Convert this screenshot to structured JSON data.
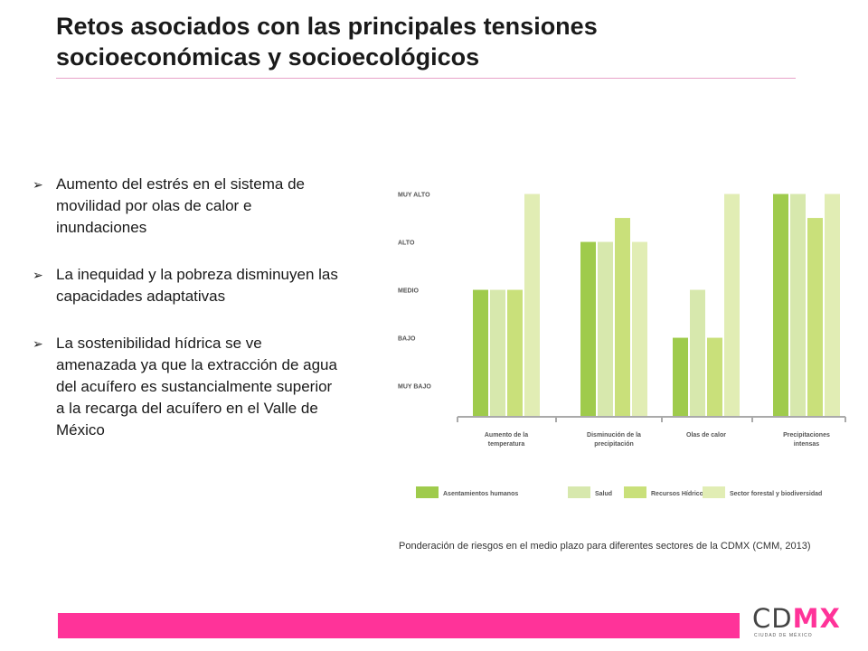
{
  "slide": {
    "title": "Retos asociados con las principales tensiones socioeconómicas y socioecológicos",
    "bullets": [
      "Aumento del estrés en el sistema de movilidad por olas de calor e inundaciones",
      "La inequidad y la pobreza disminuyen las capacidades adaptativas",
      "La sostenibilidad hídrica se ve amenazada ya que la extracción de agua del acuífero es sustancialmente superior a la recarga del acuífero en el Valle de México"
    ],
    "bullet_marker": "➢",
    "caption": "Ponderación de riesgos en el medio plazo para diferentes sectores de la CDMX (CMM, 2013)",
    "accent_color": "#ff3399"
  },
  "logo": {
    "text_main": "CD",
    "text_accent": "MX",
    "subtitle": "CIUDAD DE MÉXICO",
    "main_color": "#444444",
    "accent_color": "#ff3399"
  },
  "chart_data": {
    "type": "bar",
    "title": "",
    "xlabel": "",
    "ylabel": "",
    "y_levels": [
      "MUY BAJO",
      "BAJO",
      "MEDIO",
      "ALTO",
      "MUY ALTO"
    ],
    "ylim": [
      0,
      5
    ],
    "grid": false,
    "legend_position": "bottom",
    "categories": [
      [
        "Aumento de la",
        "temperatura"
      ],
      [
        "Disminución de la",
        "precipitación"
      ],
      [
        "Olas de calor"
      ],
      [
        "Precipitaciones",
        "intensas"
      ]
    ],
    "series": [
      {
        "name": "Asentamientos humanos",
        "color": "#9fcb4c",
        "values": [
          3,
          4,
          2,
          5
        ]
      },
      {
        "name": "Salud",
        "color": "#d7e8ad",
        "values": [
          3,
          4,
          3,
          5
        ]
      },
      {
        "name": "Recursos Hídricos",
        "color": "#c9e07a",
        "values": [
          3,
          4.5,
          2,
          4.5
        ]
      },
      {
        "name": "Sector forestal y biodiversidad",
        "color": "#e1edb4",
        "values": [
          5,
          4,
          5,
          5
        ]
      }
    ]
  }
}
